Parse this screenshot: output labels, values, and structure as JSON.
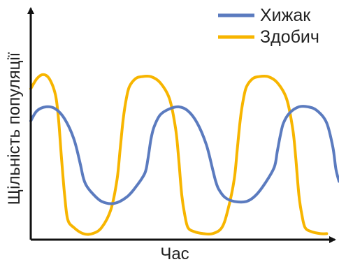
{
  "chart_data": {
    "type": "line",
    "title": "",
    "xlabel": "Час",
    "ylabel": "Щільність популяції",
    "ticks": "none",
    "grid": false,
    "legend": "top-right",
    "xlim": [
      0,
      100
    ],
    "ylim": [
      0,
      100
    ],
    "series": [
      {
        "name": "Хижак",
        "color": "#5b7bbf",
        "x": [
          0,
          2,
          5,
          8,
          11,
          14,
          16,
          17,
          18,
          20,
          23,
          27,
          31,
          34,
          37,
          38,
          39,
          40,
          42,
          45,
          48,
          51,
          54,
          57,
          59,
          60,
          61,
          63,
          66,
          70,
          73,
          76,
          79,
          80,
          81,
          82,
          84,
          87,
          90,
          93,
          96,
          98,
          99,
          100
        ],
        "y": [
          59,
          64,
          66,
          65,
          60,
          50,
          38,
          31,
          27,
          23,
          19,
          18,
          21,
          26,
          33,
          40,
          50,
          56,
          62,
          65,
          66,
          64,
          58,
          47,
          35,
          29,
          25,
          21,
          19,
          19,
          22,
          28,
          36,
          44,
          52,
          58,
          63,
          66,
          66,
          64,
          58,
          46,
          35,
          29
        ]
      },
      {
        "name": "Здобич",
        "color": "#f7b500",
        "x": [
          0,
          2,
          4,
          6,
          8,
          9,
          10,
          11,
          12,
          14,
          17,
          20,
          23,
          26,
          28,
          29,
          30,
          31,
          32,
          34,
          36,
          39,
          42,
          45,
          47,
          48,
          49,
          50,
          51,
          53,
          56,
          59,
          62,
          64,
          66,
          67,
          68,
          69,
          70,
          72,
          74,
          77,
          80,
          83,
          85,
          86,
          87,
          88,
          89,
          91,
          94,
          96
        ],
        "y": [
          75,
          80,
          82,
          80,
          72,
          60,
          40,
          22,
          10,
          6,
          3,
          3,
          6,
          15,
          30,
          45,
          60,
          70,
          76,
          80,
          81,
          81,
          78,
          70,
          55,
          40,
          22,
          12,
          6,
          4,
          3,
          3,
          6,
          15,
          30,
          45,
          60,
          70,
          76,
          80,
          81,
          81,
          78,
          70,
          55,
          40,
          22,
          12,
          6,
          4,
          3,
          3
        ]
      }
    ]
  }
}
